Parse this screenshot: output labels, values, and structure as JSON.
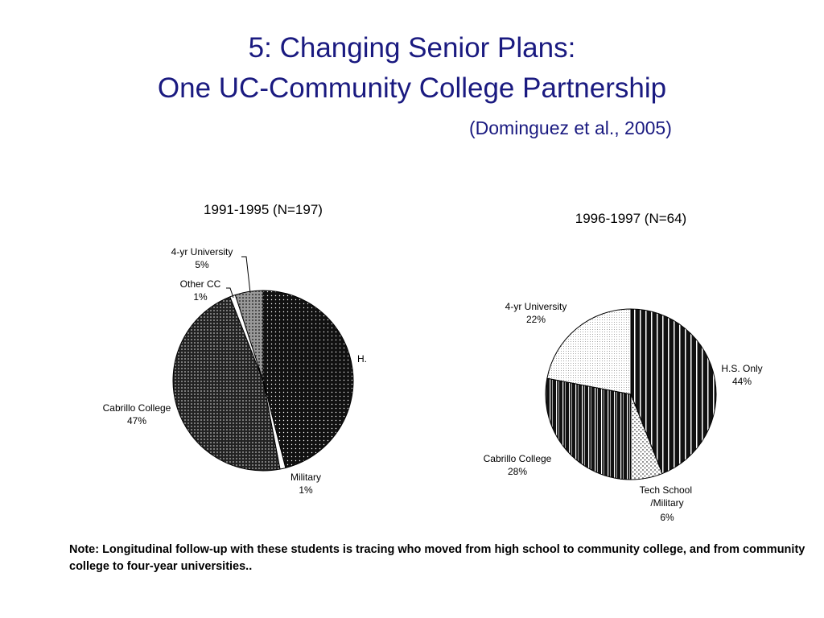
{
  "slide": {
    "title_line1": "5: Changing Senior Plans:",
    "title_line2": "One UC-Community College Partnership",
    "citation": "(Dominguez et al., 2005)",
    "note": "Note: Longitudinal follow-up with these students is tracing who moved from high school to community college, and from community college to four-year universities.."
  },
  "chart_data": [
    {
      "type": "pie",
      "title": "1991-1995 (N=197)",
      "slices": [
        {
          "label": "H.",
          "percent_label": "",
          "value": 46,
          "pattern": "dots-white-on-black"
        },
        {
          "label": "Military",
          "percent_label": "1%",
          "value": 1,
          "pattern": "white"
        },
        {
          "label": "Cabrillo College",
          "percent_label": "47%",
          "value": 47,
          "pattern": "dots-dense"
        },
        {
          "label": "Other CC",
          "percent_label": "1%",
          "value": 1,
          "pattern": "white"
        },
        {
          "label": "4-yr University",
          "percent_label": "5%",
          "value": 5,
          "pattern": "dots-gray"
        }
      ]
    },
    {
      "type": "pie",
      "title": "1996-1997 (N=64)",
      "slices": [
        {
          "label": "H.S. Only",
          "percent_label": "44%",
          "value": 44,
          "pattern": "vertical-stripes"
        },
        {
          "label": "Tech School /Military",
          "percent_label": "6%",
          "value": 6,
          "pattern": "dots-light"
        },
        {
          "label": "Cabrillo College",
          "percent_label": "28%",
          "value": 28,
          "pattern": "vertical-stripes-dense"
        },
        {
          "label": "4-yr University",
          "percent_label": "22%",
          "value": 22,
          "pattern": "fine-dots-light"
        }
      ]
    }
  ]
}
